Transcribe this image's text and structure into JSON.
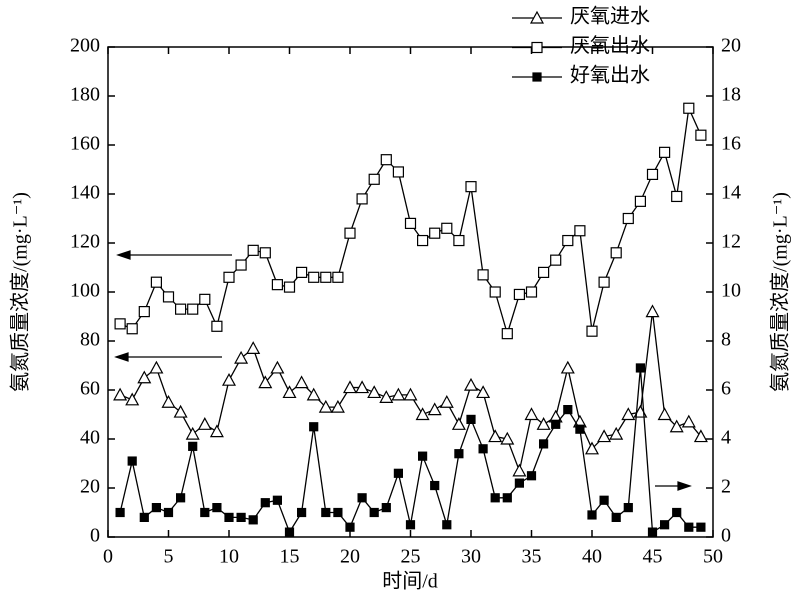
{
  "chart_data": {
    "type": "line",
    "xlabel": "时间/d",
    "ylabel": "氨氮质量浓度/(mg·L⁻¹)",
    "y2label": "氨氮质量浓度/(mg·L⁻¹)",
    "x": [
      1,
      2,
      3,
      4,
      5,
      6,
      7,
      8,
      9,
      10,
      11,
      12,
      13,
      14,
      15,
      16,
      17,
      18,
      19,
      20,
      21,
      22,
      23,
      24,
      25,
      26,
      27,
      28,
      29,
      30,
      31,
      32,
      33,
      34,
      35,
      36,
      37,
      38,
      39,
      40,
      41,
      42,
      43,
      44,
      45,
      46,
      47,
      48,
      49
    ],
    "series": [
      {
        "name": "厌氧进水",
        "color": "#000000",
        "marker": "triangle-open",
        "axis": "y",
        "values": [
          58,
          56,
          65,
          69,
          55,
          51,
          42,
          46,
          43,
          64,
          73,
          77,
          63,
          69,
          59,
          63,
          58,
          53,
          53,
          61,
          61,
          59,
          57,
          58,
          58,
          50,
          52,
          55,
          46,
          62,
          59,
          41,
          40,
          27,
          50,
          46,
          49,
          69,
          47,
          36,
          41,
          42,
          50,
          51,
          92,
          50,
          45,
          47,
          41
        ]
      },
      {
        "name": "厌氧出水",
        "color": "#000000",
        "marker": "square-open",
        "axis": "y",
        "values": [
          87,
          85,
          92,
          104,
          98,
          93,
          93,
          97,
          86,
          106,
          111,
          117,
          116,
          103,
          102,
          108,
          106,
          106,
          106,
          124,
          138,
          146,
          154,
          149,
          128,
          121,
          124,
          126,
          121,
          143,
          107,
          100,
          83,
          99,
          100,
          108,
          113,
          121,
          125,
          84,
          104,
          116,
          130,
          137,
          148,
          157,
          139,
          175,
          164
        ]
      },
      {
        "name": "好氧出水",
        "color": "#000000",
        "marker": "square-filled",
        "axis": "y2",
        "values": [
          1.0,
          3.1,
          0.8,
          1.2,
          1.0,
          1.6,
          3.7,
          1.0,
          1.2,
          0.8,
          0.8,
          0.7,
          1.4,
          1.5,
          0.2,
          1.0,
          4.5,
          1.0,
          1.0,
          0.4,
          1.6,
          1.0,
          1.2,
          2.6,
          0.5,
          3.3,
          2.1,
          0.5,
          3.4,
          4.8,
          3.6,
          1.6,
          1.6,
          2.2,
          2.5,
          3.8,
          4.6,
          5.2,
          4.4,
          0.9,
          1.5,
          0.8,
          1.2,
          6.9,
          0.2,
          0.5,
          1.0,
          0.4,
          0.4
        ]
      }
    ],
    "xlim": [
      0,
      50
    ],
    "xticks": [
      0,
      5,
      10,
      15,
      20,
      25,
      30,
      35,
      40,
      45,
      50
    ],
    "ylim": [
      0,
      200
    ],
    "yticks": [
      0,
      20,
      40,
      60,
      80,
      100,
      120,
      140,
      160,
      180,
      200
    ],
    "y2lim": [
      0,
      20
    ],
    "y2ticks": [
      0,
      2,
      4,
      6,
      8,
      10,
      12,
      14,
      16,
      18,
      20
    ],
    "legend": "upper right",
    "grid": false
  }
}
